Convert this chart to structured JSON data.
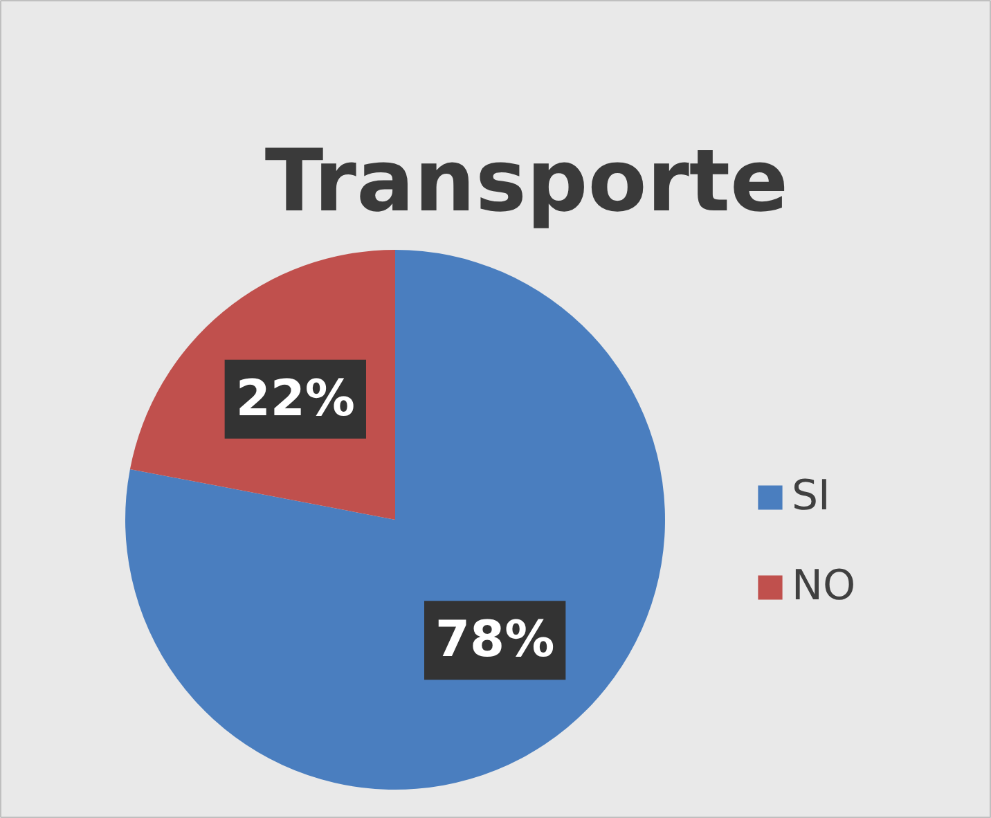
{
  "chart_data": {
    "type": "pie",
    "title": "Transporte",
    "categories": [
      "SI",
      "NO"
    ],
    "values": [
      78,
      22
    ],
    "colors": [
      "#4a7ebf",
      "#c0504d"
    ],
    "value_labels": [
      "78%",
      "22%"
    ],
    "legend": "right"
  }
}
